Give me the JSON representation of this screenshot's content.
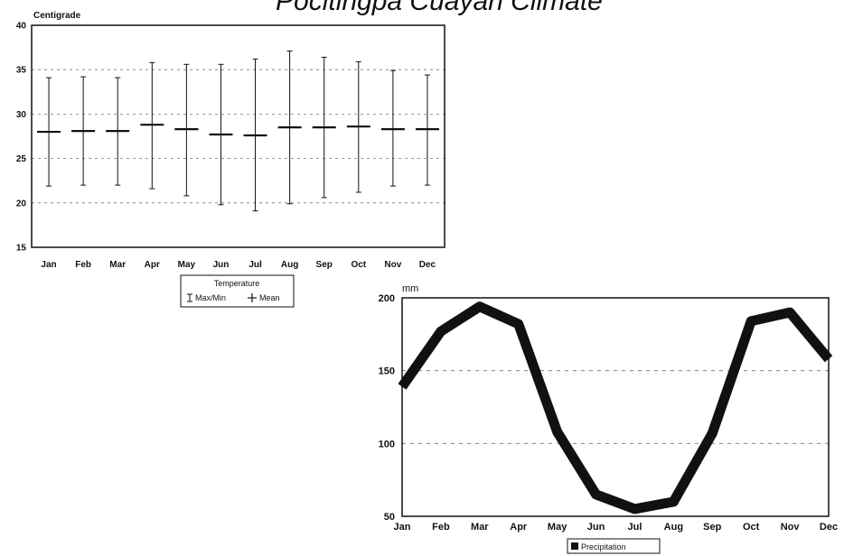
{
  "page_title": "Pocitingpa Cuayan Climate",
  "chart_data": [
    {
      "type": "box",
      "ylabel": "Centigrade",
      "ylim": [
        15,
        40
      ],
      "yticks": [
        "15",
        "20",
        "25",
        "30",
        "35",
        "40"
      ],
      "categories": [
        "Jan",
        "Feb",
        "Mar",
        "Apr",
        "May",
        "Jun",
        "Jul",
        "Aug",
        "Sep",
        "Oct",
        "Nov",
        "Dec"
      ],
      "series": [
        {
          "name": "Max/Min",
          "max": [
            34.1,
            34.2,
            34.1,
            35.8,
            35.6,
            35.6,
            36.2,
            37.1,
            36.4,
            35.9,
            34.9,
            34.4
          ],
          "min": [
            21.9,
            22.0,
            22.0,
            21.6,
            20.8,
            19.8,
            19.1,
            19.9,
            20.6,
            21.2,
            21.9,
            22.0
          ]
        },
        {
          "name": "Mean",
          "values": [
            28.0,
            28.1,
            28.1,
            28.8,
            28.3,
            27.7,
            27.6,
            28.5,
            28.5,
            28.6,
            28.3,
            28.3
          ]
        }
      ],
      "legend": {
        "title": "Temperature",
        "entries": [
          "Max/Min",
          "Mean"
        ],
        "placement": "bottom"
      },
      "grid": true
    },
    {
      "type": "line",
      "ylabel": "mm",
      "ylim": [
        50,
        200
      ],
      "yticks": [
        "50",
        "100",
        "150",
        "200"
      ],
      "categories": [
        "Jan",
        "Feb",
        "Mar",
        "Apr",
        "May",
        "Jun",
        "Jul",
        "Aug",
        "Sep",
        "Oct",
        "Nov",
        "Dec"
      ],
      "series": [
        {
          "name": "Precipitation",
          "values": [
            139,
            177,
            194,
            182,
            108,
            65,
            55,
            60,
            107,
            184,
            190,
            158
          ]
        }
      ],
      "legend": {
        "entries": [
          "Precipitation"
        ],
        "placement": "bottom"
      },
      "grid": true,
      "colors": {
        "line": "#111111"
      }
    }
  ]
}
